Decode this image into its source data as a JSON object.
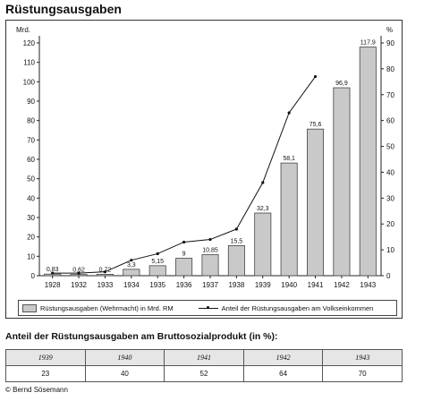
{
  "title": "Rüstungsausgaben",
  "chart_data": {
    "type": "bar",
    "categories": [
      "1928",
      "1932",
      "1933",
      "1934",
      "1935",
      "1936",
      "1937",
      "1938",
      "1939",
      "1940",
      "1941",
      "1942",
      "1943"
    ],
    "series": [
      {
        "name": "Rüstungsausgaben (Wehrmacht) in Mrd. RM",
        "type": "bar",
        "axis": "left",
        "values": [
          0.83,
          0.62,
          0.72,
          3.3,
          5.15,
          9,
          10.85,
          15.5,
          32.3,
          58.1,
          75.6,
          96.9,
          117.9
        ],
        "labels": [
          "0,83",
          "0,62",
          "0,72",
          "3,3",
          "5,15",
          "9",
          "10,85",
          "15,5",
          "32,3",
          "58,1",
          "75,6",
          "96,9",
          "117,9"
        ]
      },
      {
        "name": "Anteil der Rüstungsausgaben am Volkseinkommen",
        "type": "line",
        "axis": "right",
        "values": [
          1,
          1,
          1.5,
          6,
          8.5,
          13,
          14,
          18,
          36,
          63,
          77,
          null,
          null
        ]
      }
    ],
    "ylabel_left": "Mrd.",
    "ylabel_right": "%",
    "ylim_left": [
      0,
      120
    ],
    "ylim_right": [
      0,
      90
    ],
    "yticks_left": [
      0,
      10,
      20,
      30,
      40,
      50,
      60,
      70,
      80,
      90,
      100,
      110,
      120
    ],
    "yticks_right": [
      0,
      10,
      20,
      30,
      40,
      50,
      60,
      70,
      80,
      90
    ],
    "legend_position": "bottom",
    "bar_color": "#c9c9c9",
    "line_color": "#111111",
    "grid": false
  },
  "table": {
    "title": "Anteil der Rüstungsausgaben am Bruttosozialprodukt (in %):",
    "years": [
      "1939",
      "1940",
      "1941",
      "1942",
      "1943"
    ],
    "values": [
      "23",
      "40",
      "52",
      "64",
      "70"
    ]
  },
  "credit": "© Bernd Sösemann"
}
